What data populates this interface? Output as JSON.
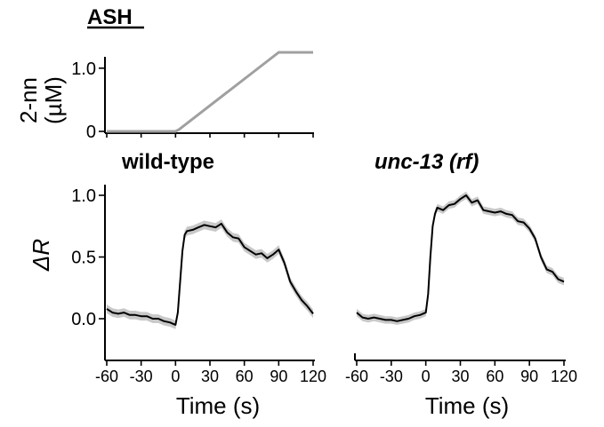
{
  "figure": {
    "cell_label": "ASH",
    "concentration_ylabel_line1": "2-nn",
    "concentration_ylabel_line2": "(µM)",
    "response_ylabel": "ΔR",
    "xlabel": "Time (s)",
    "panel_titles": [
      "wild-type",
      "unc-13 (rf)"
    ]
  },
  "colors": {
    "trace": "#000000",
    "sem_band": "#c8c8c8",
    "stimulus": "#a0a0a0",
    "axis": "#000000"
  },
  "chart_data": [
    {
      "type": "line",
      "title": "ASH",
      "ylabel": "2-nn (µM)",
      "xlim": [
        -60,
        120
      ],
      "ylim": [
        0,
        1.25
      ],
      "yticks": [
        0,
        1.0
      ],
      "ytick_labels": [
        "0",
        "1.0"
      ],
      "series": [
        {
          "x": [
            -60,
            0,
            3,
            90,
            120
          ],
          "values": [
            0,
            0,
            0.03,
            1.25,
            1.25
          ]
        }
      ]
    },
    {
      "type": "line",
      "title": "wild-type",
      "xlabel": "Time (s)",
      "ylabel": "ΔR",
      "xlim": [
        -60,
        120
      ],
      "ylim": [
        -0.3,
        1.05
      ],
      "xticks": [
        -60,
        -30,
        0,
        30,
        60,
        90,
        120
      ],
      "xtick_labels": [
        "-60",
        "-30",
        "0",
        "30",
        "60",
        "90",
        "120"
      ],
      "yticks": [
        0.0,
        0.5,
        1.0
      ],
      "ytick_labels": [
        "0.0",
        "0.5",
        "1.0"
      ],
      "series": [
        {
          "x": [
            -60,
            -55,
            -50,
            -45,
            -40,
            -35,
            -30,
            -25,
            -20,
            -15,
            -10,
            -5,
            0,
            2,
            4,
            6,
            8,
            10,
            15,
            20,
            25,
            30,
            35,
            40,
            45,
            50,
            55,
            60,
            65,
            70,
            75,
            80,
            85,
            90,
            95,
            100,
            105,
            110,
            115,
            120
          ],
          "values": [
            0.08,
            0.05,
            0.04,
            0.05,
            0.03,
            0.03,
            0.02,
            0.02,
            0.0,
            0.0,
            -0.02,
            -0.03,
            -0.05,
            0.05,
            0.3,
            0.55,
            0.68,
            0.71,
            0.72,
            0.74,
            0.76,
            0.75,
            0.74,
            0.77,
            0.7,
            0.66,
            0.65,
            0.58,
            0.55,
            0.52,
            0.53,
            0.49,
            0.52,
            0.56,
            0.45,
            0.3,
            0.22,
            0.15,
            0.1,
            0.04
          ],
          "sem": 0.035
        }
      ]
    },
    {
      "type": "line",
      "title": "unc-13 (rf)",
      "xlabel": "Time (s)",
      "xlim": [
        -60,
        120
      ],
      "ylim": [
        -0.3,
        1.05
      ],
      "xticks": [
        -60,
        -30,
        0,
        30,
        60,
        90,
        120
      ],
      "xtick_labels": [
        "-60",
        "-30",
        "0",
        "30",
        "60",
        "90",
        "120"
      ],
      "series": [
        {
          "x": [
            -60,
            -55,
            -50,
            -45,
            -40,
            -35,
            -30,
            -25,
            -20,
            -15,
            -10,
            -5,
            0,
            2,
            4,
            6,
            8,
            10,
            15,
            20,
            25,
            30,
            35,
            40,
            45,
            50,
            55,
            60,
            65,
            70,
            75,
            80,
            85,
            90,
            95,
            100,
            105,
            110,
            115,
            120
          ],
          "values": [
            0.05,
            0.01,
            0.0,
            0.01,
            0.0,
            -0.01,
            -0.01,
            -0.02,
            -0.01,
            0.0,
            0.02,
            0.03,
            0.05,
            0.2,
            0.5,
            0.75,
            0.85,
            0.9,
            0.88,
            0.92,
            0.93,
            0.97,
            1.0,
            0.94,
            0.96,
            0.88,
            0.87,
            0.86,
            0.87,
            0.85,
            0.84,
            0.79,
            0.78,
            0.73,
            0.65,
            0.5,
            0.4,
            0.38,
            0.32,
            0.3
          ],
          "sem": 0.03
        }
      ]
    }
  ]
}
